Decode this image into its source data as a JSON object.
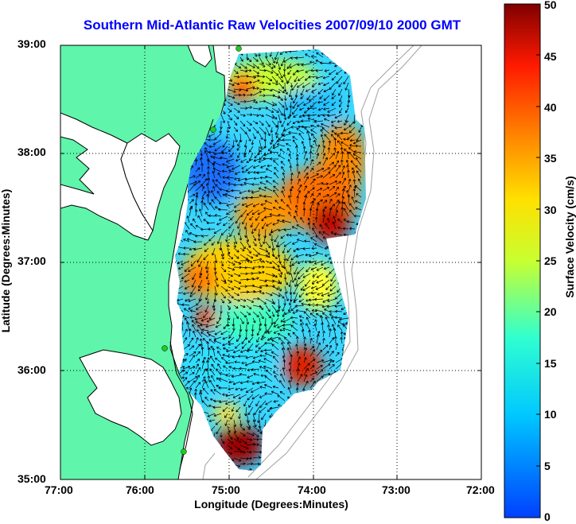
{
  "title": "Southern Mid-Atlantic Raw Velocities 2007/09/10 2000 GMT",
  "x_axis": {
    "label": "Longitude (Degrees:Minutes)",
    "ticks": [
      "77:00",
      "76:00",
      "75:00",
      "74:00",
      "73:00",
      "72:00"
    ],
    "range": [
      -77,
      -72
    ]
  },
  "y_axis": {
    "label": "Latitude (Degrees:Minutes)",
    "ticks": [
      "39:00",
      "38:00",
      "37:00",
      "36:00",
      "35:00"
    ],
    "range": [
      35,
      39
    ]
  },
  "colorbar": {
    "label": "Surface Velocity (cm/s)",
    "ticks": [
      "50",
      "45",
      "40",
      "35",
      "30",
      "25",
      "20",
      "15",
      "10",
      "5",
      "0"
    ],
    "range": [
      0,
      50
    ],
    "colormap": "jet"
  },
  "colors": {
    "land": "#5ff5aa",
    "title": "#0000ff",
    "coastline": "#000000",
    "bathymetry": "#a0a0a0",
    "station_marker": "#22cc22"
  },
  "grid": true
}
